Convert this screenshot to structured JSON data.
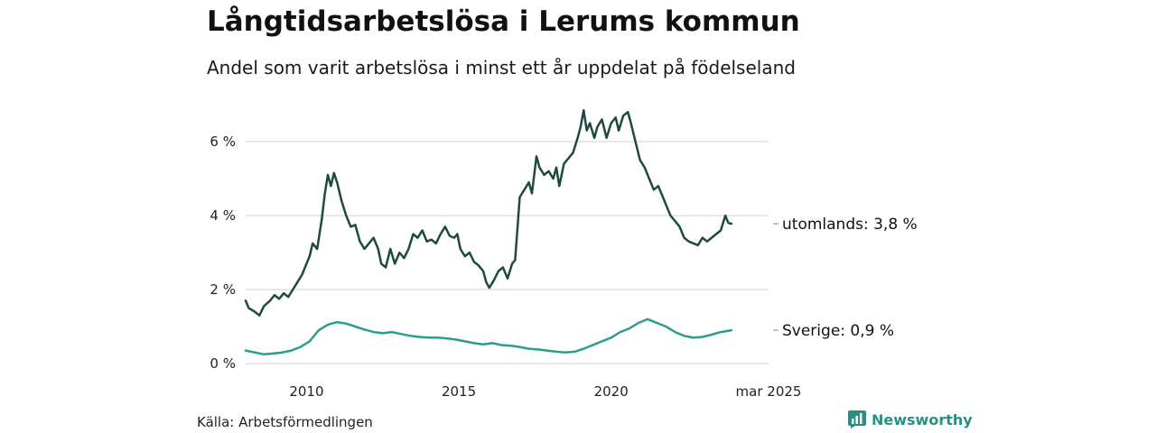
{
  "title": "Långtidsarbetslösa i Lerums kommun",
  "subtitle": "Andel som varit arbetslösa i minst ett år uppdelat på födelseland",
  "source": "Källa: Arbetsförmedlingen",
  "brand": {
    "name": "Newsworthy",
    "icon": "newsworthy-logo-icon",
    "color": "#2a8f83"
  },
  "chart_data": {
    "type": "line",
    "xlim": [
      2008.0,
      2025.17
    ],
    "ylim": [
      0,
      7
    ],
    "y_ticks": [
      {
        "value": 0,
        "label": "0 %"
      },
      {
        "value": 2,
        "label": "2 %"
      },
      {
        "value": 4,
        "label": "4 %"
      },
      {
        "value": 6,
        "label": "6 %"
      }
    ],
    "x_ticks": [
      {
        "value": 2010,
        "label": "2010"
      },
      {
        "value": 2015,
        "label": "2015"
      },
      {
        "value": 2020,
        "label": "2020"
      },
      {
        "value": 2025.17,
        "label": "mar 2025"
      }
    ],
    "grid": true,
    "series": [
      {
        "name": "utomlands",
        "end_label": "utomlands: 3,8 %",
        "color": "#1f4a40",
        "points": [
          [
            2008.0,
            1.7
          ],
          [
            2008.1,
            1.5
          ],
          [
            2008.3,
            1.4
          ],
          [
            2008.45,
            1.3
          ],
          [
            2008.6,
            1.55
          ],
          [
            2008.8,
            1.7
          ],
          [
            2008.95,
            1.85
          ],
          [
            2009.1,
            1.75
          ],
          [
            2009.25,
            1.9
          ],
          [
            2009.4,
            1.8
          ],
          [
            2009.55,
            2.0
          ],
          [
            2009.7,
            2.2
          ],
          [
            2009.85,
            2.4
          ],
          [
            2010.0,
            2.7
          ],
          [
            2010.1,
            2.9
          ],
          [
            2010.2,
            3.25
          ],
          [
            2010.35,
            3.1
          ],
          [
            2010.5,
            3.9
          ],
          [
            2010.6,
            4.6
          ],
          [
            2010.7,
            5.1
          ],
          [
            2010.8,
            4.8
          ],
          [
            2010.9,
            5.15
          ],
          [
            2011.0,
            4.9
          ],
          [
            2011.15,
            4.4
          ],
          [
            2011.3,
            4.0
          ],
          [
            2011.45,
            3.7
          ],
          [
            2011.6,
            3.75
          ],
          [
            2011.75,
            3.3
          ],
          [
            2011.9,
            3.1
          ],
          [
            2012.05,
            3.25
          ],
          [
            2012.2,
            3.4
          ],
          [
            2012.35,
            3.1
          ],
          [
            2012.45,
            2.7
          ],
          [
            2012.6,
            2.6
          ],
          [
            2012.75,
            3.1
          ],
          [
            2012.9,
            2.7
          ],
          [
            2013.05,
            3.0
          ],
          [
            2013.2,
            2.85
          ],
          [
            2013.35,
            3.1
          ],
          [
            2013.5,
            3.5
          ],
          [
            2013.65,
            3.4
          ],
          [
            2013.8,
            3.6
          ],
          [
            2013.95,
            3.3
          ],
          [
            2014.1,
            3.35
          ],
          [
            2014.25,
            3.25
          ],
          [
            2014.4,
            3.5
          ],
          [
            2014.55,
            3.7
          ],
          [
            2014.7,
            3.45
          ],
          [
            2014.85,
            3.4
          ],
          [
            2014.95,
            3.5
          ],
          [
            2015.05,
            3.1
          ],
          [
            2015.2,
            2.9
          ],
          [
            2015.35,
            3.0
          ],
          [
            2015.5,
            2.75
          ],
          [
            2015.65,
            2.65
          ],
          [
            2015.8,
            2.5
          ],
          [
            2015.9,
            2.2
          ],
          [
            2016.0,
            2.05
          ],
          [
            2016.15,
            2.25
          ],
          [
            2016.3,
            2.5
          ],
          [
            2016.45,
            2.6
          ],
          [
            2016.6,
            2.3
          ],
          [
            2016.75,
            2.7
          ],
          [
            2016.85,
            2.8
          ],
          [
            2017.0,
            4.5
          ],
          [
            2017.15,
            4.7
          ],
          [
            2017.3,
            4.9
          ],
          [
            2017.4,
            4.6
          ],
          [
            2017.55,
            5.6
          ],
          [
            2017.65,
            5.3
          ],
          [
            2017.8,
            5.1
          ],
          [
            2017.95,
            5.2
          ],
          [
            2018.1,
            5.0
          ],
          [
            2018.2,
            5.3
          ],
          [
            2018.3,
            4.8
          ],
          [
            2018.45,
            5.4
          ],
          [
            2018.6,
            5.55
          ],
          [
            2018.75,
            5.7
          ],
          [
            2018.9,
            6.1
          ],
          [
            2019.0,
            6.4
          ],
          [
            2019.1,
            6.85
          ],
          [
            2019.2,
            6.3
          ],
          [
            2019.3,
            6.5
          ],
          [
            2019.45,
            6.1
          ],
          [
            2019.55,
            6.4
          ],
          [
            2019.7,
            6.6
          ],
          [
            2019.85,
            6.1
          ],
          [
            2020.0,
            6.5
          ],
          [
            2020.15,
            6.65
          ],
          [
            2020.25,
            6.3
          ],
          [
            2020.4,
            6.7
          ],
          [
            2020.55,
            6.8
          ],
          [
            2020.65,
            6.5
          ],
          [
            2020.8,
            6.0
          ],
          [
            2020.95,
            5.5
          ],
          [
            2021.1,
            5.3
          ],
          [
            2021.25,
            5.0
          ],
          [
            2021.4,
            4.7
          ],
          [
            2021.55,
            4.8
          ],
          [
            2021.7,
            4.5
          ],
          [
            2021.85,
            4.2
          ],
          [
            2021.95,
            4.0
          ],
          [
            2022.1,
            3.85
          ],
          [
            2022.25,
            3.7
          ],
          [
            2022.4,
            3.4
          ],
          [
            2022.55,
            3.3
          ],
          [
            2022.7,
            3.25
          ],
          [
            2022.85,
            3.2
          ],
          [
            2023.0,
            3.4
          ],
          [
            2023.15,
            3.3
          ],
          [
            2023.3,
            3.4
          ],
          [
            2023.45,
            3.5
          ],
          [
            2023.6,
            3.6
          ],
          [
            2023.75,
            4.0
          ],
          [
            2023.85,
            3.8
          ],
          [
            2023.95,
            3.78
          ]
        ]
      },
      {
        "name": "Sverige",
        "end_label": "Sverige: 0,9 %",
        "color": "#2a9d8f",
        "points": [
          [
            2008.0,
            0.35
          ],
          [
            2008.3,
            0.3
          ],
          [
            2008.6,
            0.25
          ],
          [
            2008.9,
            0.27
          ],
          [
            2009.2,
            0.3
          ],
          [
            2009.5,
            0.35
          ],
          [
            2009.8,
            0.45
          ],
          [
            2010.1,
            0.6
          ],
          [
            2010.4,
            0.9
          ],
          [
            2010.7,
            1.05
          ],
          [
            2011.0,
            1.12
          ],
          [
            2011.3,
            1.08
          ],
          [
            2011.6,
            1.0
          ],
          [
            2011.9,
            0.92
          ],
          [
            2012.2,
            0.85
          ],
          [
            2012.5,
            0.82
          ],
          [
            2012.8,
            0.85
          ],
          [
            2013.1,
            0.8
          ],
          [
            2013.4,
            0.75
          ],
          [
            2013.7,
            0.72
          ],
          [
            2014.0,
            0.7
          ],
          [
            2014.3,
            0.7
          ],
          [
            2014.6,
            0.68
          ],
          [
            2014.9,
            0.65
          ],
          [
            2015.2,
            0.6
          ],
          [
            2015.5,
            0.55
          ],
          [
            2015.8,
            0.52
          ],
          [
            2016.1,
            0.55
          ],
          [
            2016.4,
            0.5
          ],
          [
            2016.7,
            0.48
          ],
          [
            2017.0,
            0.45
          ],
          [
            2017.3,
            0.4
          ],
          [
            2017.6,
            0.38
          ],
          [
            2017.9,
            0.35
          ],
          [
            2018.2,
            0.32
          ],
          [
            2018.5,
            0.3
          ],
          [
            2018.8,
            0.32
          ],
          [
            2019.1,
            0.4
          ],
          [
            2019.4,
            0.5
          ],
          [
            2019.7,
            0.6
          ],
          [
            2020.0,
            0.7
          ],
          [
            2020.3,
            0.85
          ],
          [
            2020.6,
            0.95
          ],
          [
            2020.9,
            1.1
          ],
          [
            2021.2,
            1.2
          ],
          [
            2021.5,
            1.1
          ],
          [
            2021.8,
            1.0
          ],
          [
            2022.1,
            0.85
          ],
          [
            2022.4,
            0.75
          ],
          [
            2022.7,
            0.7
          ],
          [
            2023.0,
            0.72
          ],
          [
            2023.3,
            0.78
          ],
          [
            2023.6,
            0.85
          ],
          [
            2023.95,
            0.9
          ]
        ]
      }
    ]
  }
}
